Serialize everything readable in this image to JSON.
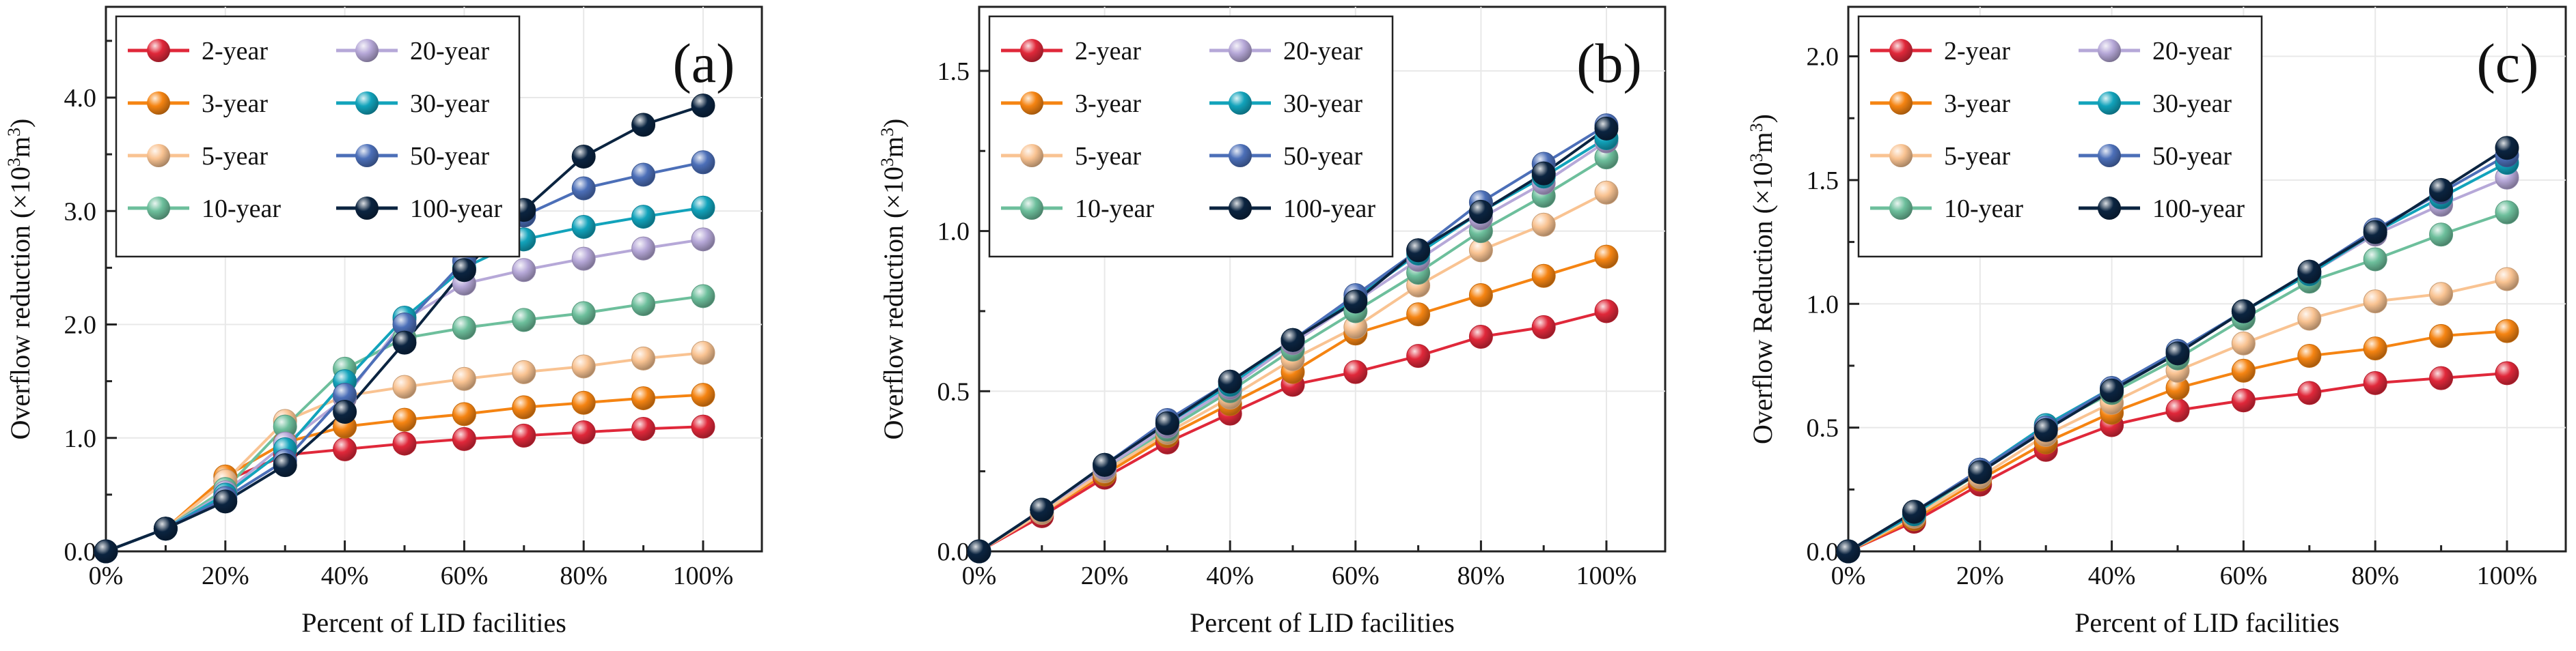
{
  "figure": {
    "name": "LID overflow reduction comparison"
  },
  "chart_data": [
    {
      "type": "line",
      "panel_label": "(a)",
      "xlabel": "Percent of LID facilities",
      "ylabel_main": "Overflow reduction (×10",
      "ylabel_sup": "3",
      "ylabel_m": "m",
      "ylabel_close": ")",
      "ylim": [
        0,
        4.8
      ],
      "yticks": [
        0,
        1,
        2,
        3,
        4
      ],
      "ytick_labels": [
        "0.0",
        "1.0",
        "2.0",
        "3.0",
        "4.0"
      ],
      "x": [
        0,
        10,
        20,
        30,
        40,
        50,
        60,
        70,
        80,
        90,
        100
      ],
      "xticks": [
        0,
        20,
        40,
        60,
        80,
        100
      ],
      "xtick_labels": [
        "0%",
        "20%",
        "40%",
        "60%",
        "80%",
        "100%"
      ],
      "series": [
        {
          "name": "2-year",
          "color": "#e0283a",
          "values": [
            0,
            0.2,
            0.62,
            0.85,
            0.9,
            0.95,
            0.99,
            1.02,
            1.05,
            1.08,
            1.1
          ]
        },
        {
          "name": "3-year",
          "color": "#f58412",
          "values": [
            0,
            0.2,
            0.66,
            0.96,
            1.1,
            1.16,
            1.21,
            1.27,
            1.31,
            1.35,
            1.38
          ]
        },
        {
          "name": "5-year",
          "color": "#f9c392",
          "values": [
            0,
            0.2,
            0.62,
            1.15,
            1.37,
            1.45,
            1.52,
            1.58,
            1.63,
            1.7,
            1.75
          ]
        },
        {
          "name": "10-year",
          "color": "#6dbf9c",
          "values": [
            0,
            0.2,
            0.55,
            1.1,
            1.61,
            1.88,
            1.97,
            2.04,
            2.1,
            2.18,
            2.25
          ]
        },
        {
          "name": "20-year",
          "color": "#b6a8d8",
          "values": [
            0,
            0.2,
            0.52,
            0.95,
            1.35,
            2.04,
            2.36,
            2.48,
            2.58,
            2.67,
            2.75
          ]
        },
        {
          "name": "30-year",
          "color": "#12a3bb",
          "values": [
            0,
            0.2,
            0.5,
            0.9,
            1.5,
            2.06,
            2.5,
            2.75,
            2.86,
            2.95,
            3.03
          ]
        },
        {
          "name": "50-year",
          "color": "#4c6fb8",
          "values": [
            0,
            0.2,
            0.47,
            0.8,
            1.38,
            2.0,
            2.56,
            2.96,
            3.2,
            3.32,
            3.43
          ]
        },
        {
          "name": "100-year",
          "color": "#0b2440",
          "values": [
            0,
            0.2,
            0.44,
            0.76,
            1.23,
            1.84,
            2.48,
            3.01,
            3.48,
            3.76,
            3.93
          ]
        }
      ]
    },
    {
      "type": "line",
      "panel_label": "(b)",
      "xlabel": "Percent of LID facilities",
      "ylabel_main": "Overflow reduction (×10",
      "ylabel_sup": "3",
      "ylabel_m": "m",
      "ylabel_close": ")",
      "ylim": [
        0,
        1.7
      ],
      "yticks": [
        0,
        0.5,
        1.0,
        1.5
      ],
      "ytick_labels": [
        "0.0",
        "0.5",
        "1.0",
        "1.5"
      ],
      "x": [
        0,
        10,
        20,
        30,
        40,
        50,
        60,
        70,
        80,
        90,
        100
      ],
      "xticks": [
        0,
        20,
        40,
        60,
        80,
        100
      ],
      "xtick_labels": [
        "0%",
        "20%",
        "40%",
        "60%",
        "80%",
        "100%"
      ],
      "series": [
        {
          "name": "2-year",
          "color": "#e0283a",
          "values": [
            0,
            0.11,
            0.23,
            0.34,
            0.43,
            0.52,
            0.56,
            0.61,
            0.67,
            0.7,
            0.75
          ]
        },
        {
          "name": "3-year",
          "color": "#f58412",
          "values": [
            0,
            0.12,
            0.24,
            0.36,
            0.46,
            0.56,
            0.68,
            0.74,
            0.8,
            0.86,
            0.92
          ]
        },
        {
          "name": "5-year",
          "color": "#f9c392",
          "values": [
            0,
            0.12,
            0.25,
            0.37,
            0.48,
            0.6,
            0.7,
            0.83,
            0.94,
            1.02,
            1.12
          ]
        },
        {
          "name": "10-year",
          "color": "#6dbf9c",
          "values": [
            0,
            0.13,
            0.26,
            0.38,
            0.5,
            0.63,
            0.75,
            0.87,
            1.0,
            1.11,
            1.23
          ]
        },
        {
          "name": "20-year",
          "color": "#b6a8d8",
          "values": [
            0,
            0.13,
            0.26,
            0.39,
            0.51,
            0.65,
            0.78,
            0.91,
            1.04,
            1.15,
            1.28
          ]
        },
        {
          "name": "30-year",
          "color": "#12a3bb",
          "values": [
            0,
            0.13,
            0.27,
            0.4,
            0.52,
            0.66,
            0.79,
            0.93,
            1.06,
            1.17,
            1.29
          ]
        },
        {
          "name": "50-year",
          "color": "#4c6fb8",
          "values": [
            0,
            0.13,
            0.27,
            0.41,
            0.53,
            0.66,
            0.8,
            0.94,
            1.09,
            1.21,
            1.33
          ]
        },
        {
          "name": "100-year",
          "color": "#0b2440",
          "values": [
            0,
            0.13,
            0.27,
            0.4,
            0.53,
            0.66,
            0.78,
            0.94,
            1.06,
            1.18,
            1.32
          ]
        }
      ]
    },
    {
      "type": "line",
      "panel_label": "(c)",
      "xlabel": "Percent of LID facilities",
      "ylabel_main": "Overflow Reduction (×10",
      "ylabel_sup": "3",
      "ylabel_m": "m",
      "ylabel_close": ")",
      "ylim": [
        0,
        2.2
      ],
      "yticks": [
        0,
        0.5,
        1.0,
        1.5,
        2.0
      ],
      "ytick_labels": [
        "0.0",
        "0.5",
        "1.0",
        "1.5",
        "2.0"
      ],
      "x": [
        0,
        10,
        20,
        30,
        40,
        50,
        60,
        70,
        80,
        90,
        100
      ],
      "xticks": [
        0,
        20,
        40,
        60,
        80,
        100
      ],
      "xtick_labels": [
        "0%",
        "20%",
        "40%",
        "60%",
        "80%",
        "100%"
      ],
      "series": [
        {
          "name": "2-year",
          "color": "#e0283a",
          "values": [
            0,
            0.12,
            0.27,
            0.41,
            0.51,
            0.57,
            0.61,
            0.64,
            0.68,
            0.7,
            0.72
          ]
        },
        {
          "name": "3-year",
          "color": "#f58412",
          "values": [
            0,
            0.13,
            0.29,
            0.44,
            0.56,
            0.66,
            0.73,
            0.79,
            0.82,
            0.87,
            0.89
          ]
        },
        {
          "name": "5-year",
          "color": "#f9c392",
          "values": [
            0,
            0.14,
            0.3,
            0.47,
            0.6,
            0.73,
            0.84,
            0.94,
            1.01,
            1.04,
            1.1
          ]
        },
        {
          "name": "10-year",
          "color": "#6dbf9c",
          "values": [
            0,
            0.15,
            0.32,
            0.5,
            0.64,
            0.78,
            0.94,
            1.09,
            1.18,
            1.28,
            1.37
          ]
        },
        {
          "name": "20-year",
          "color": "#b6a8d8",
          "values": [
            0,
            0.15,
            0.33,
            0.51,
            0.66,
            0.81,
            0.97,
            1.12,
            1.28,
            1.4,
            1.51
          ]
        },
        {
          "name": "30-year",
          "color": "#12a3bb",
          "values": [
            0,
            0.15,
            0.33,
            0.51,
            0.66,
            0.81,
            0.97,
            1.12,
            1.29,
            1.43,
            1.57
          ]
        },
        {
          "name": "50-year",
          "color": "#4c6fb8",
          "values": [
            0,
            0.16,
            0.33,
            0.5,
            0.66,
            0.81,
            0.97,
            1.13,
            1.3,
            1.45,
            1.6
          ]
        },
        {
          "name": "100-year",
          "color": "#0b2440",
          "values": [
            0,
            0.16,
            0.32,
            0.49,
            0.65,
            0.8,
            0.97,
            1.13,
            1.29,
            1.46,
            1.63
          ]
        }
      ]
    }
  ]
}
